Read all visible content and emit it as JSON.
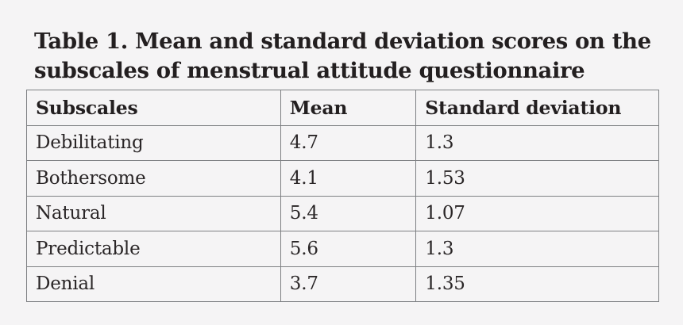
{
  "page": {
    "background_color": "#f5f4f5",
    "text_color": "#231f20",
    "border_color": "#7e8083"
  },
  "title": {
    "full": "Table 1. Mean and standard deviation scores on the subscales of menstrual attitude questionnaire",
    "line1": "Table 1. Mean and standard deviation scores on the",
    "line2": "subscales of menstrual attitude questionnaire"
  },
  "table": {
    "columns": [
      "Subscales",
      "Mean",
      "Standard deviation"
    ],
    "rows": [
      [
        "Debilitating",
        "4.7",
        "1.3"
      ],
      [
        "Bothersome",
        "4.1",
        "1.53"
      ],
      [
        "Natural",
        "5.4",
        "1.07"
      ],
      [
        "Predictable",
        "5.6",
        "1.3"
      ],
      [
        "Denial",
        "3.7",
        "1.35"
      ]
    ]
  },
  "chart_data": {
    "type": "table",
    "title": "Table 1. Mean and standard deviation scores on the subscales of menstrual attitude questionnaire",
    "categories": [
      "Debilitating",
      "Bothersome",
      "Natural",
      "Predictable",
      "Denial"
    ],
    "series": [
      {
        "name": "Mean",
        "values": [
          4.7,
          4.1,
          5.4,
          5.6,
          3.7
        ]
      },
      {
        "name": "Standard deviation",
        "values": [
          1.3,
          1.53,
          1.07,
          1.3,
          1.35
        ]
      }
    ]
  }
}
